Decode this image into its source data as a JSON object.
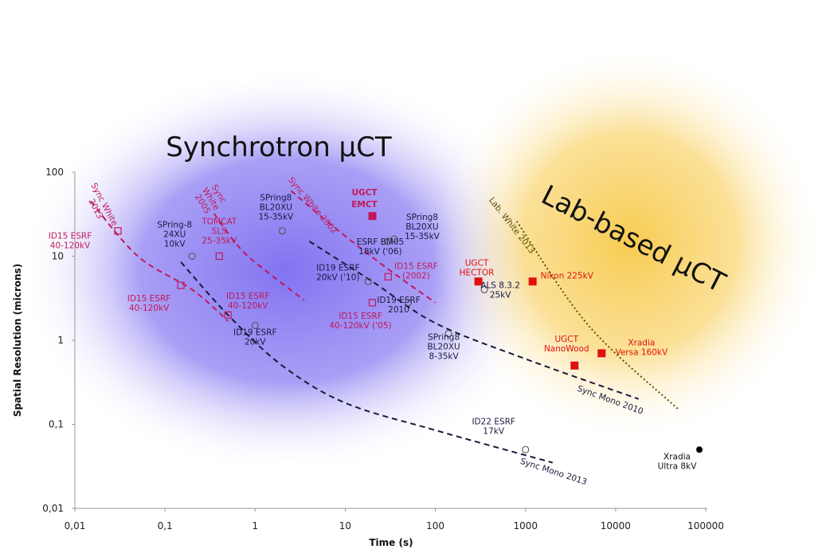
{
  "chart_data": {
    "type": "scatter",
    "xscale": "log",
    "yscale": "log",
    "xlim": [
      0.01,
      100000
    ],
    "ylim": [
      0.01,
      100
    ],
    "xlabel": "Time (s)",
    "ylabel": "Spatial Resolution (microns)",
    "x_ticks": [
      "0,01",
      "0,1",
      "1",
      "10",
      "100",
      "1000",
      "10000",
      "100000"
    ],
    "y_ticks": [
      "0,01",
      "0,1",
      "1",
      "10",
      "100"
    ],
    "grid": false,
    "regions": [
      {
        "label": "Synchrotron µCT",
        "color": "#7b6cf0"
      },
      {
        "label": "Lab-based µCT",
        "color": "#f7c948"
      }
    ],
    "series": [
      {
        "label_lines": [
          "Sync White",
          "2013"
        ],
        "color": "#c2185b",
        "style": "dashed",
        "points": [
          [
            0.015,
            45
          ],
          [
            0.05,
            10
          ],
          [
            0.2,
            4
          ],
          [
            0.5,
            1.7
          ]
        ]
      },
      {
        "label_lines": [
          "Sync",
          "White",
          "2005"
        ],
        "color": "#c2185b",
        "style": "dashed",
        "points": [
          [
            0.35,
            32
          ],
          [
            0.7,
            12
          ],
          [
            1.5,
            6
          ],
          [
            3.5,
            3
          ]
        ]
      },
      {
        "label_lines": [
          "Sync White 2002"
        ],
        "color": "#c2185b",
        "style": "dashed",
        "points": [
          [
            2.5,
            60
          ],
          [
            8,
            21
          ],
          [
            30,
            7
          ],
          [
            100,
            2.8
          ]
        ]
      },
      {
        "label_lines": [
          "Sync Mono 2010"
        ],
        "color": "#1a1a3a",
        "style": "dashed",
        "points": [
          [
            4,
            15
          ],
          [
            20,
            5
          ],
          [
            100,
            1.6
          ],
          [
            1000,
            0.6
          ],
          [
            18000,
            0.2
          ]
        ]
      },
      {
        "label_lines": [
          "Sync Mono 2013"
        ],
        "color": "#1a1a3a",
        "style": "dashed",
        "points": [
          [
            0.15,
            8.5
          ],
          [
            0.5,
            2
          ],
          [
            2,
            0.5
          ],
          [
            10,
            0.18
          ],
          [
            100,
            0.085
          ],
          [
            2000,
            0.035
          ]
        ]
      },
      {
        "label_lines": [
          "Lab. White 2013"
        ],
        "color": "#5a5200",
        "style": "dotted",
        "points": [
          [
            800,
            26
          ],
          [
            5000,
            1.5
          ],
          [
            50000,
            0.15
          ]
        ]
      }
    ],
    "points": [
      {
        "x": 0.03,
        "y": 20,
        "marker": "open-square",
        "color": "#c2185b",
        "label_lines": [
          "ID15 ESRF",
          "40-120kV"
        ]
      },
      {
        "x": 0.15,
        "y": 4.5,
        "marker": "open-square",
        "color": "#c2185b",
        "label_lines": [
          "ID15 ESRF",
          "40-120kV"
        ]
      },
      {
        "x": 0.5,
        "y": 2,
        "marker": "open-square",
        "color": "#c2185b",
        "label_lines": [
          "ID15 ESRF",
          "40-120kV"
        ]
      },
      {
        "x": 0.4,
        "y": 10,
        "marker": "open-square",
        "color": "#c2185b",
        "label_lines": [
          "TOMCAT",
          "SLS",
          "25-35kV"
        ]
      },
      {
        "x": 20,
        "y": 2.8,
        "marker": "open-square",
        "color": "#c2185b",
        "label_lines": [
          "ID15 ESRF",
          "40-120kV ('05)"
        ]
      },
      {
        "x": 30,
        "y": 5.7,
        "marker": "open-square",
        "color": "#c2185b",
        "label_lines": [
          "ID15 ESRF",
          "(2002)"
        ]
      },
      {
        "x": 0.2,
        "y": 10,
        "marker": "open-circle",
        "color": "#555555",
        "label_lines": [
          "SPring-8",
          "24XU",
          "10kV"
        ]
      },
      {
        "x": 1,
        "y": 1.5,
        "marker": "open-circle",
        "color": "#555555",
        "label_lines": [
          "ID19 ESRF",
          "20kV"
        ]
      },
      {
        "x": 2,
        "y": 20,
        "marker": "open-circle",
        "color": "#555555",
        "label_lines": [
          "SPring8",
          "BL20XU",
          "15-35kV"
        ]
      },
      {
        "x": 18,
        "y": 5,
        "marker": "open-circle",
        "color": "#555555",
        "label_lines": [
          "ID19 ESRF",
          "20kV ('10)"
        ]
      },
      {
        "x": 30,
        "y": 15,
        "marker": "open-circle",
        "color": "#555555",
        "label_lines": [
          "ESRF BM05",
          "18kV ('06)"
        ]
      },
      {
        "x": 35,
        "y": 16,
        "marker": "open-circle",
        "color": "#555555",
        "label_lines": [
          "SPring8",
          "BL20XU",
          "15-35kV"
        ]
      },
      {
        "x": 50,
        "y": 2.8,
        "marker": "open-circle",
        "color": "#555555",
        "label_lines": [
          "ID19 ESRF",
          "2010"
        ]
      },
      {
        "x": 140,
        "y": 1.2,
        "marker": "open-circle",
        "color": "#555555",
        "label_lines": [
          "SPring8",
          "BL20XU",
          "8-35kV"
        ]
      },
      {
        "x": 350,
        "y": 4,
        "marker": "open-circle",
        "color": "#555555",
        "label_lines": [
          "ALS 8.3.2",
          "25kV"
        ]
      },
      {
        "x": 1000,
        "y": 0.05,
        "marker": "open-circle",
        "color": "#555555",
        "label_lines": [
          "ID22 ESRF",
          "17kV"
        ]
      },
      {
        "x": 20,
        "y": 30,
        "marker": "filled-square",
        "color": "#c2185b",
        "label_lines": [
          "UGCT",
          "EMCT"
        ]
      },
      {
        "x": 300,
        "y": 5,
        "marker": "filled-square",
        "color": "#e01010",
        "label_lines": [
          "UGCT",
          "HECTOR"
        ]
      },
      {
        "x": 1200,
        "y": 5,
        "marker": "filled-square",
        "color": "#e01010",
        "label_lines": [
          "Nikon 225kV"
        ]
      },
      {
        "x": 3500,
        "y": 0.5,
        "marker": "filled-square",
        "color": "#e01010",
        "label_lines": [
          "UGCT",
          "NanoWood"
        ]
      },
      {
        "x": 7000,
        "y": 0.7,
        "marker": "filled-square",
        "color": "#e01010",
        "label_lines": [
          "Xradia",
          "Versa 160kV"
        ]
      },
      {
        "x": 85000,
        "y": 0.05,
        "marker": "filled-circle",
        "color": "#000000",
        "label_lines": [
          "Xradia",
          "Ultra 8kV"
        ]
      }
    ]
  }
}
